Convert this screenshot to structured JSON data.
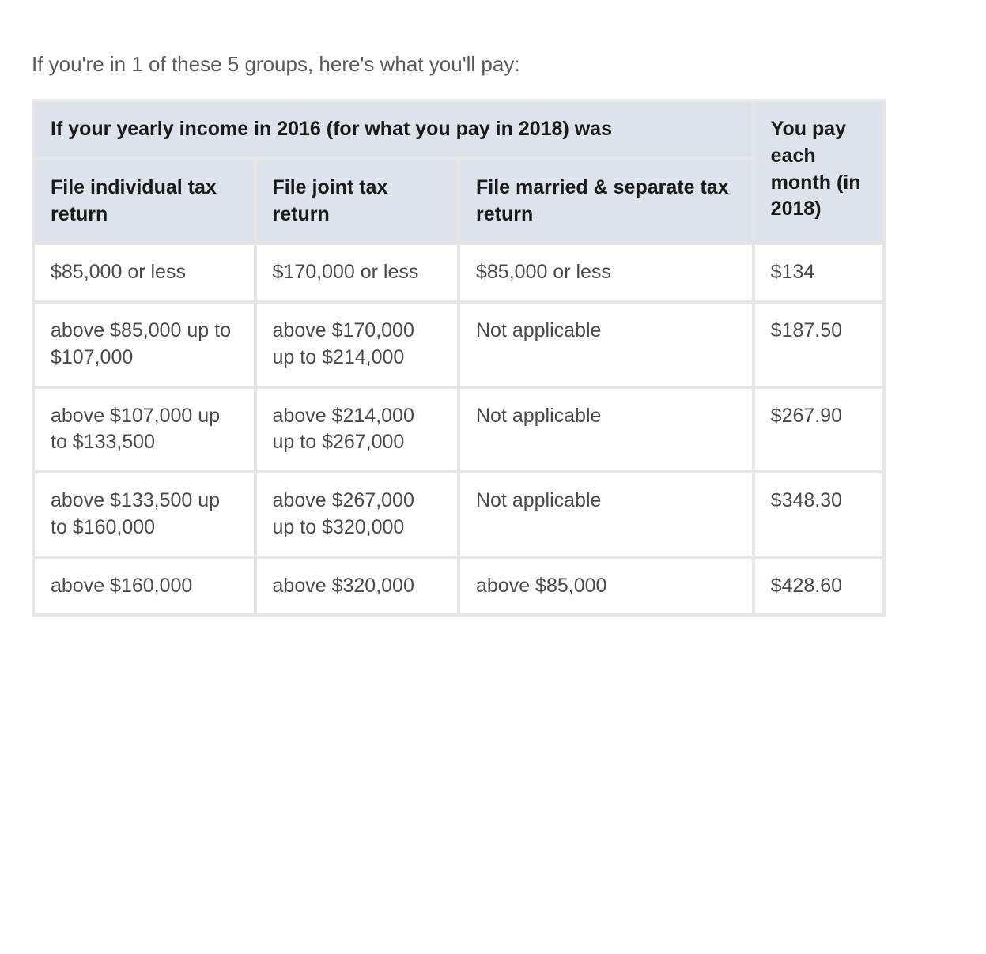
{
  "intro": "If you're in 1 of these 5 groups, here's what you'll pay:",
  "table": {
    "type": "table",
    "header_bg": "#dde3ea",
    "cell_bg": "#ffffff",
    "border_color": "#e6e6e6",
    "text_color": "#4a4a4a",
    "header_text_color": "#1a1a1a",
    "font_size_pt": 19,
    "top_header": "If your yearly income in 2016 (for what you pay in 2018) was",
    "right_header": "You pay each month (in 2018)",
    "columns": [
      "File individual tax return",
      "File joint tax return",
      "File married & separate tax return"
    ],
    "column_widths_pct": [
      24,
      22,
      32,
      14
    ],
    "rows": [
      [
        "$85,000 or less",
        "$170,000 or less",
        "$85,000 or less",
        "$134"
      ],
      [
        "above $85,000 up to $107,000",
        "above $170,000 up to $214,000",
        "Not applicable",
        "$187.50"
      ],
      [
        "above $107,000 up to $133,500",
        "above $214,000 up to $267,000",
        "Not applicable",
        "$267.90"
      ],
      [
        "above $133,500 up to $160,000",
        "above $267,000 up to $320,000",
        "Not applicable",
        "$348.30"
      ],
      [
        "above $160,000",
        "above $320,000",
        "above $85,000",
        "$428.60"
      ]
    ]
  }
}
